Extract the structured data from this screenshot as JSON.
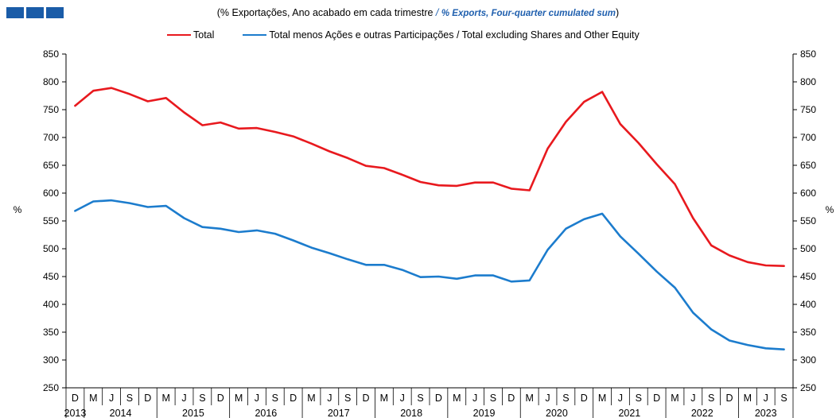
{
  "header": {
    "subtitle_pt": "(% Exportações,  Ano acabado em cada trimestre",
    "subtitle_sep": " / ",
    "subtitle_en": "% Exports, Four-quarter cumulated sum",
    "subtitle_close": ")"
  },
  "colors": {
    "logo": "#1a5ca8",
    "total": "#e8191e",
    "excluding": "#1c7ccd",
    "english_text": "#1f5fae"
  },
  "chart_data": {
    "type": "line",
    "title": "",
    "ylabel": "%",
    "ylabel_right": "%",
    "ylim": [
      250,
      850
    ],
    "yticks": [
      250,
      300,
      350,
      400,
      450,
      500,
      550,
      600,
      650,
      700,
      750,
      800,
      850
    ],
    "grid": false,
    "legend_position": "top",
    "quarter_labels": [
      "D",
      "M",
      "J",
      "S",
      "D",
      "M",
      "J",
      "S",
      "D",
      "M",
      "J",
      "S",
      "D",
      "M",
      "J",
      "S",
      "D",
      "M",
      "J",
      "S",
      "D",
      "M",
      "J",
      "S",
      "D",
      "M",
      "J",
      "S",
      "D",
      "M",
      "J",
      "S",
      "D",
      "M",
      "J",
      "S",
      "D",
      "M",
      "J",
      "S"
    ],
    "years": [
      {
        "label": "2013",
        "start": 0,
        "end": 0
      },
      {
        "label": "2014",
        "start": 1,
        "end": 4
      },
      {
        "label": "2015",
        "start": 5,
        "end": 8
      },
      {
        "label": "2016",
        "start": 9,
        "end": 12
      },
      {
        "label": "2017",
        "start": 13,
        "end": 16
      },
      {
        "label": "2018",
        "start": 17,
        "end": 20
      },
      {
        "label": "2019",
        "start": 21,
        "end": 24
      },
      {
        "label": "2020",
        "start": 25,
        "end": 28
      },
      {
        "label": "2021",
        "start": 29,
        "end": 32
      },
      {
        "label": "2022",
        "start": 33,
        "end": 36
      },
      {
        "label": "2023",
        "start": 37,
        "end": 39
      }
    ],
    "series": [
      {
        "name": "Total",
        "values": [
          757,
          784,
          789,
          778,
          765,
          771,
          745,
          722,
          727,
          716,
          717,
          710,
          702,
          689,
          675,
          663,
          649,
          645,
          633,
          620,
          614,
          613,
          619,
          619,
          608,
          605,
          680,
          728,
          764,
          782,
          724,
          690,
          652,
          616,
          555,
          506,
          488,
          476,
          470,
          469
        ]
      },
      {
        "name": "Total menos Ações e outras Participações / Total excluding Shares and Other Equity",
        "values": [
          568,
          585,
          587,
          582,
          575,
          577,
          555,
          539,
          536,
          530,
          533,
          527,
          515,
          502,
          492,
          481,
          471,
          471,
          462,
          449,
          450,
          446,
          452,
          452,
          441,
          443,
          498,
          536,
          553,
          563,
          522,
          491,
          459,
          430,
          385,
          355,
          335,
          327,
          321,
          319
        ]
      }
    ]
  }
}
